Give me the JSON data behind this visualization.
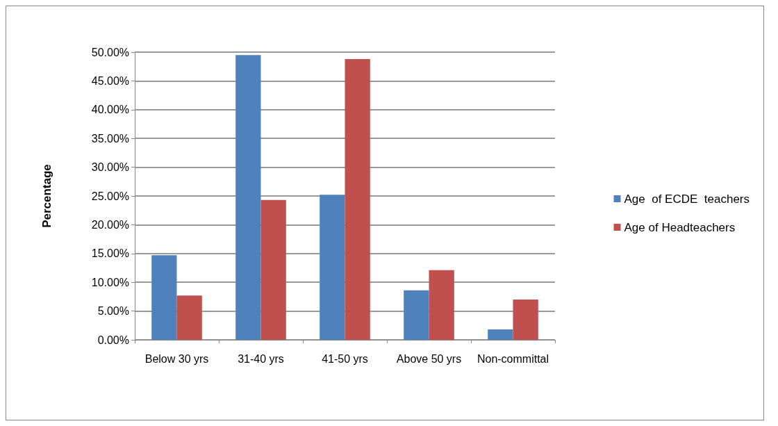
{
  "chart_data": {
    "type": "bar",
    "ylabel": "Percentage",
    "categories": [
      "Below 30 yrs",
      "31-40 yrs",
      "41-50 yrs",
      "Above 50 yrs",
      "Non-committal"
    ],
    "series": [
      {
        "name": "Age  of ECDE  teachers",
        "color": "#4f81bd",
        "values": [
          14.7,
          49.5,
          25.2,
          8.6,
          1.8
        ]
      },
      {
        "name": "Age of Headteachers",
        "color": "#c0504d",
        "values": [
          7.7,
          24.3,
          48.8,
          12.1,
          7.0
        ]
      }
    ],
    "ylim": [
      0,
      50
    ],
    "yticks": [
      {
        "value": 0,
        "label": "0.00%"
      },
      {
        "value": 5,
        "label": "5.00%"
      },
      {
        "value": 10,
        "label": "10.00%"
      },
      {
        "value": 15,
        "label": "15.00%"
      },
      {
        "value": 20,
        "label": "20.00%"
      },
      {
        "value": 25,
        "label": "25.00%"
      },
      {
        "value": 30,
        "label": "30.00%"
      },
      {
        "value": 35,
        "label": "35.00%"
      },
      {
        "value": 40,
        "label": "40.00%"
      },
      {
        "value": 45,
        "label": "45.00%"
      },
      {
        "value": 50,
        "label": "50.00%"
      }
    ],
    "grid": "y",
    "legend": "right"
  }
}
